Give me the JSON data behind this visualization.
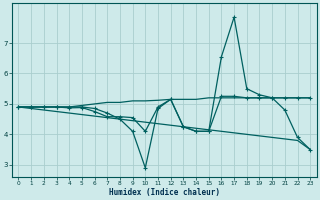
{
  "xlabel": "Humidex (Indice chaleur)",
  "ylabel": "",
  "background_color": "#ceeaea",
  "line_color": "#006060",
  "grid_color": "#aacece",
  "xlim": [
    -0.5,
    23.5
  ],
  "ylim": [
    2.6,
    8.3
  ],
  "x_ticks": [
    0,
    1,
    2,
    3,
    4,
    5,
    6,
    7,
    8,
    9,
    10,
    11,
    12,
    13,
    14,
    15,
    16,
    17,
    18,
    19,
    20,
    21,
    22,
    23
  ],
  "y_ticks": [
    3,
    4,
    5,
    6,
    7
  ],
  "line_flat": [
    4.9,
    4.9,
    4.9,
    4.9,
    4.9,
    4.95,
    5.0,
    5.05,
    5.05,
    5.1,
    5.1,
    5.12,
    5.15,
    5.15,
    5.15,
    5.2,
    5.2,
    5.2,
    5.2,
    5.2,
    5.2,
    5.2,
    5.2,
    5.2
  ],
  "line_diagonal": [
    4.9,
    4.85,
    4.8,
    4.75,
    4.7,
    4.65,
    4.6,
    4.55,
    4.5,
    4.45,
    4.4,
    4.35,
    4.3,
    4.25,
    4.2,
    4.15,
    4.1,
    4.05,
    4.0,
    3.95,
    3.9,
    3.85,
    3.8,
    3.5
  ],
  "line_wavy": [
    4.9,
    4.9,
    4.9,
    4.9,
    4.87,
    4.88,
    4.75,
    4.58,
    4.58,
    4.55,
    4.1,
    4.9,
    5.15,
    4.25,
    4.1,
    4.1,
    5.25,
    5.25,
    5.2,
    5.2,
    5.2,
    5.2,
    5.2,
    5.2
  ],
  "line_spike": [
    4.9,
    4.9,
    4.9,
    4.9,
    4.9,
    4.9,
    4.85,
    4.7,
    4.5,
    4.1,
    2.9,
    4.85,
    5.15,
    4.25,
    4.1,
    4.1,
    6.55,
    7.85,
    5.5,
    5.3,
    5.2,
    4.8,
    3.9,
    3.5
  ]
}
